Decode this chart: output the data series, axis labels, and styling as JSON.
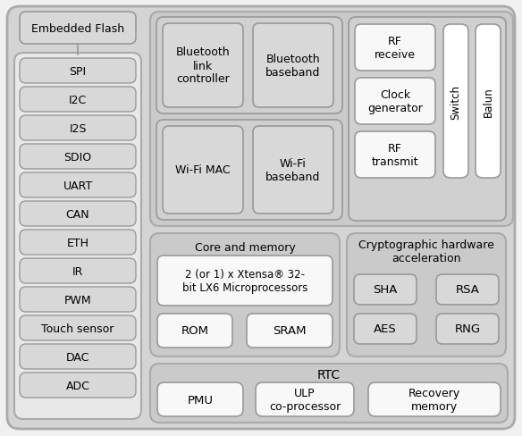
{
  "fig_bg": "#f0f0f0",
  "outer_bg": "#d4d4d4",
  "section_bg": "#cacaca",
  "inner_bg": "#d0d0d0",
  "white_box": "#f8f8f8",
  "white_box2": "#ffffff",
  "left_box_bg": "#d8d8d8",
  "left_inner_bg": "#ebebeb",
  "edge_dark": "#888888",
  "edge_med": "#999999",
  "left_col_label": "Embedded Flash",
  "left_items": [
    "SPI",
    "I2C",
    "I2S",
    "SDIO",
    "UART",
    "CAN",
    "ETH",
    "IR",
    "PWM",
    "Touch sensor",
    "DAC",
    "ADC"
  ],
  "core_label": "Core and memory",
  "core_text": "2 (or 1) x Xtensa® 32-\nbit LX6 Microprocessors",
  "crypto_label": "Cryptographic hardware\nacceleration",
  "rtc_label": "RTC"
}
